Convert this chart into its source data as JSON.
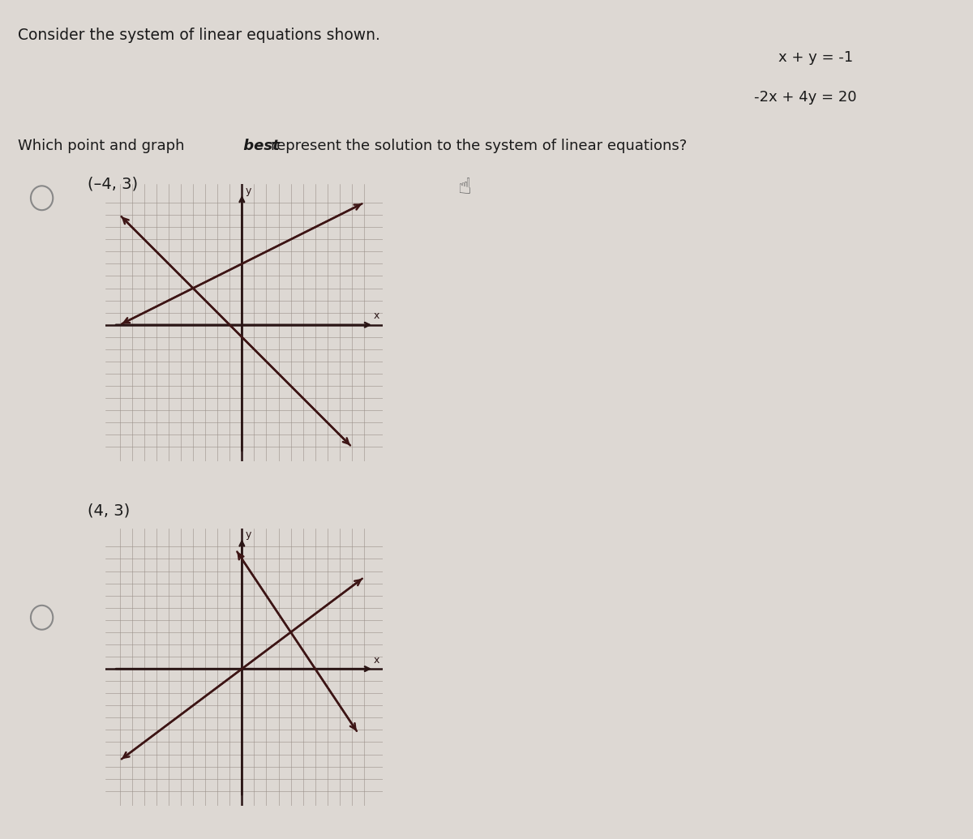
{
  "background_color": "#ddd8d3",
  "graph_bg": "#e8e3dc",
  "title_text": "Consider the system of linear equations shown.",
  "eq1": "x + y = -1",
  "eq2": "-2x + 4y = 20",
  "question": "Which point and graph  best  represent the solution to the system of linear equations?",
  "option1_label": "(–4, 3)",
  "option2_label": "(4, 3)",
  "grid_color": "#9a9088",
  "axis_color": "#2a1515",
  "line_color": "#3d1515",
  "text_color": "#1a1a1a",
  "radio_color": "#888",
  "graph1_xlim": [
    -10,
    10
  ],
  "graph1_ylim": [
    -10,
    10
  ],
  "graph2_xlim": [
    -10,
    10
  ],
  "graph2_ylim": [
    -10,
    10
  ]
}
